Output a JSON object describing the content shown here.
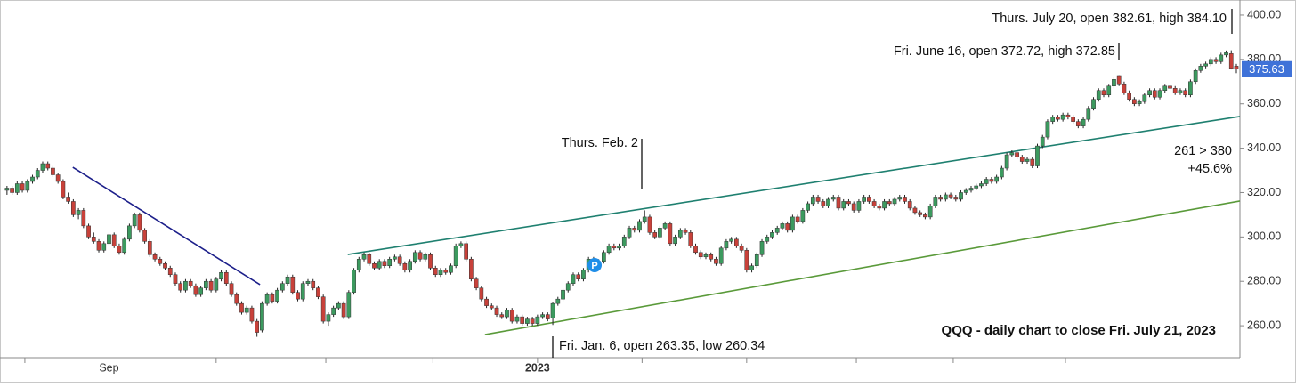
{
  "chart_data": {
    "type": "candlestick",
    "title": "QQQ - daily chart to close Fri. July 21, 2023",
    "annotations": [
      "Thurs. July 20, open 382.61, high 384.10",
      "Fri. June 16, open 372.72, high 372.85",
      "Thurs. Feb. 2",
      "Fri. Jan. 6, open 263.35, low 260.34",
      "261 > 380",
      "+45.6%"
    ],
    "marker_label": "P",
    "up_color": "#3c9a5f",
    "down_color": "#c8413a",
    "wick_color": "#222222",
    "last_price": 375.63,
    "last_price_color": "#3f72d8",
    "ylim": [
      245.6,
      406.8
    ],
    "yticks": [
      {
        "value": 260,
        "label": "260.00"
      },
      {
        "value": 280,
        "label": "280.00"
      },
      {
        "value": 300,
        "label": "300.00"
      },
      {
        "value": 320,
        "label": "320.00"
      },
      {
        "value": 340,
        "label": "340.00"
      },
      {
        "value": 360,
        "label": "360.00"
      },
      {
        "value": 380,
        "label": "380.00"
      },
      {
        "value": 400,
        "label": "400.00"
      }
    ],
    "xlim": [
      -0.5,
      241.7
    ],
    "xticks": [
      {
        "value": 20,
        "label": "Sep"
      },
      {
        "value": 104,
        "label": "2023"
      }
    ],
    "minor_xticks": [
      3.5,
      41,
      62.5,
      83.5,
      104,
      124.5,
      145,
      166.5,
      185.5,
      207.5,
      228
    ],
    "trendlines": [
      {
        "color": "#1c1f8a",
        "x": [
          12.9,
          49.6
        ],
        "y": [
          331.4,
          278.5
        ]
      },
      {
        "color": "#1f8070",
        "x": [
          66.8,
          241.7
        ],
        "y": [
          292.1,
          354.3
        ]
      },
      {
        "color": "#5a9a3a",
        "x": [
          93.7,
          241.7
        ],
        "y": [
          256.0,
          316.2
        ]
      }
    ],
    "ohlc": [
      [
        321,
        323,
        319,
        322
      ],
      [
        322,
        323,
        319,
        320
      ],
      [
        320,
        325,
        319,
        324
      ],
      [
        324,
        325,
        320,
        321
      ],
      [
        321,
        326,
        320,
        325
      ],
      [
        325,
        328,
        324,
        327
      ],
      [
        327,
        331,
        326,
        330
      ],
      [
        330,
        334,
        329,
        333
      ],
      [
        333,
        334,
        330,
        331
      ],
      [
        331,
        332,
        327,
        328
      ],
      [
        328,
        329,
        324,
        325
      ],
      [
        325,
        326,
        317,
        318
      ],
      [
        318,
        320,
        315,
        316
      ],
      [
        316,
        317,
        309,
        310
      ],
      [
        310,
        313,
        308,
        312
      ],
      [
        312,
        313,
        304,
        305
      ],
      [
        305,
        306,
        299,
        300
      ],
      [
        300,
        302,
        297,
        298
      ],
      [
        298,
        299,
        293,
        294
      ],
      [
        294,
        298,
        293,
        297
      ],
      [
        297,
        302,
        296,
        301
      ],
      [
        301,
        302,
        295,
        296
      ],
      [
        296,
        297,
        292,
        293
      ],
      [
        293,
        300,
        292,
        299
      ],
      [
        299,
        306,
        298,
        305
      ],
      [
        305,
        311,
        304,
        310
      ],
      [
        310,
        311,
        302,
        303
      ],
      [
        303,
        304,
        297,
        298
      ],
      [
        298,
        299,
        291,
        292
      ],
      [
        292,
        293,
        289,
        290
      ],
      [
        290,
        291,
        287,
        288
      ],
      [
        288,
        289,
        285,
        286
      ],
      [
        286,
        287,
        282,
        283
      ],
      [
        283,
        284,
        278,
        279
      ],
      [
        279,
        280,
        275,
        276
      ],
      [
        276,
        281,
        275,
        280
      ],
      [
        280,
        281,
        277,
        278
      ],
      [
        278,
        279,
        273,
        274
      ],
      [
        274,
        278,
        273,
        277
      ],
      [
        277,
        281,
        276,
        280
      ],
      [
        280,
        281,
        275,
        276
      ],
      [
        276,
        282,
        275,
        281
      ],
      [
        281,
        285,
        280,
        284
      ],
      [
        284,
        285,
        278,
        279
      ],
      [
        279,
        280,
        273,
        274
      ],
      [
        274,
        275,
        269,
        270
      ],
      [
        270,
        271,
        265,
        266
      ],
      [
        266,
        269,
        265,
        268
      ],
      [
        268,
        269,
        261,
        262
      ],
      [
        262,
        263,
        255,
        257
      ],
      [
        258,
        271,
        257,
        270
      ],
      [
        270,
        275,
        269,
        274
      ],
      [
        274,
        275,
        270,
        271
      ],
      [
        271,
        277,
        270,
        276
      ],
      [
        276,
        280,
        275,
        279
      ],
      [
        279,
        283,
        278,
        282
      ],
      [
        282,
        283,
        274,
        275
      ],
      [
        275,
        276,
        271,
        272
      ],
      [
        272,
        280,
        271,
        279
      ],
      [
        279,
        281,
        278,
        280
      ],
      [
        280,
        281,
        276,
        277
      ],
      [
        277,
        278,
        272,
        273
      ],
      [
        273,
        274,
        261,
        262
      ],
      [
        262,
        266,
        260,
        265
      ],
      [
        265,
        269,
        264,
        268
      ],
      [
        268,
        271,
        267,
        270
      ],
      [
        270,
        271,
        263,
        264
      ],
      [
        264,
        276,
        263,
        275
      ],
      [
        275,
        286,
        274,
        285
      ],
      [
        285,
        291,
        284,
        290
      ],
      [
        290,
        293,
        289,
        292
      ],
      [
        292,
        293,
        287,
        288
      ],
      [
        288,
        289,
        285,
        286
      ],
      [
        286,
        290,
        285,
        289
      ],
      [
        289,
        290,
        286,
        287
      ],
      [
        287,
        291,
        286,
        290
      ],
      [
        290,
        292,
        289,
        291
      ],
      [
        291,
        292,
        287,
        288
      ],
      [
        288,
        289,
        284,
        285
      ],
      [
        285,
        290,
        284,
        289
      ],
      [
        289,
        294,
        288,
        293
      ],
      [
        293,
        294,
        289,
        290
      ],
      [
        290,
        293,
        289,
        292
      ],
      [
        292,
        293,
        285,
        286
      ],
      [
        286,
        287,
        282,
        283
      ],
      [
        283,
        286,
        282,
        285
      ],
      [
        285,
        286,
        283,
        284
      ],
      [
        284,
        288,
        283,
        287
      ],
      [
        287,
        297,
        286,
        296
      ],
      [
        296,
        298,
        295,
        297
      ],
      [
        297,
        298,
        289,
        290
      ],
      [
        290,
        291,
        280,
        281
      ],
      [
        281,
        282,
        276,
        277
      ],
      [
        277,
        278,
        271,
        272
      ],
      [
        272,
        273,
        268,
        269
      ],
      [
        269,
        270,
        267,
        268
      ],
      [
        268,
        269,
        264,
        265
      ],
      [
        265,
        266,
        263,
        264
      ],
      [
        264,
        268,
        263,
        267
      ],
      [
        267,
        268,
        261,
        262
      ],
      [
        262,
        265,
        261,
        264
      ],
      [
        264,
        265,
        260,
        261
      ],
      [
        261,
        264,
        260,
        263
      ],
      [
        263,
        264,
        260,
        261
      ],
      [
        261,
        265,
        260,
        264
      ],
      [
        264,
        266,
        263,
        265
      ],
      [
        265,
        266,
        262,
        263
      ],
      [
        263.35,
        270.5,
        260.34,
        270
      ],
      [
        270,
        273,
        269,
        272
      ],
      [
        272,
        277,
        271,
        276
      ],
      [
        276,
        280,
        275,
        279
      ],
      [
        279,
        284,
        278,
        283
      ],
      [
        283,
        284,
        280,
        281
      ],
      [
        281,
        286,
        280,
        285
      ],
      [
        285,
        291,
        284,
        290
      ],
      [
        290,
        291,
        285,
        286
      ],
      [
        286,
        290,
        285,
        289
      ],
      [
        289,
        294,
        288,
        293
      ],
      [
        293,
        297,
        292,
        296
      ],
      [
        296,
        297,
        294,
        295
      ],
      [
        295,
        297,
        294,
        296
      ],
      [
        296,
        301,
        295,
        300
      ],
      [
        300,
        305,
        299,
        304
      ],
      [
        304,
        305,
        302,
        303
      ],
      [
        303,
        308,
        302,
        307
      ],
      [
        307,
        312,
        306,
        309
      ],
      [
        309,
        310,
        301,
        302
      ],
      [
        302,
        303,
        299,
        300
      ],
      [
        300,
        305,
        299,
        304
      ],
      [
        304,
        307,
        303,
        306
      ],
      [
        306,
        307,
        296,
        297
      ],
      [
        297,
        301,
        296,
        300
      ],
      [
        300,
        304,
        299,
        303
      ],
      [
        303,
        304,
        301,
        302
      ],
      [
        302,
        303,
        295,
        296
      ],
      [
        296,
        297,
        292,
        293
      ],
      [
        293,
        294,
        290,
        291
      ],
      [
        291,
        293,
        290,
        292
      ],
      [
        292,
        293,
        289,
        290
      ],
      [
        290,
        291,
        287,
        288
      ],
      [
        288,
        296,
        287,
        295
      ],
      [
        295,
        299,
        294,
        298
      ],
      [
        298,
        300,
        297,
        299
      ],
      [
        299,
        300,
        295,
        296
      ],
      [
        296,
        297,
        293,
        294
      ],
      [
        294,
        295,
        284,
        285
      ],
      [
        285,
        288,
        284,
        287
      ],
      [
        287,
        293,
        286,
        292
      ],
      [
        292,
        299,
        291,
        298
      ],
      [
        298,
        301,
        297,
        300
      ],
      [
        300,
        303,
        299,
        302
      ],
      [
        302,
        305,
        301,
        304
      ],
      [
        304,
        307,
        303,
        306
      ],
      [
        306,
        307,
        302,
        303
      ],
      [
        303,
        310,
        302,
        309
      ],
      [
        309,
        310,
        306,
        307
      ],
      [
        307,
        313,
        306,
        312
      ],
      [
        312,
        316,
        311,
        315
      ],
      [
        315,
        319,
        314,
        318
      ],
      [
        318,
        319,
        315,
        316
      ],
      [
        316,
        317,
        313,
        314
      ],
      [
        314,
        318,
        313,
        317
      ],
      [
        317,
        319,
        316,
        318
      ],
      [
        318,
        319,
        312,
        313
      ],
      [
        313,
        317,
        312,
        316
      ],
      [
        316,
        317,
        314,
        315
      ],
      [
        315,
        316,
        311,
        312
      ],
      [
        312,
        317,
        311,
        316
      ],
      [
        316,
        319,
        315,
        318
      ],
      [
        318,
        319,
        315,
        316
      ],
      [
        316,
        317,
        313,
        314
      ],
      [
        314,
        315,
        312,
        313
      ],
      [
        313,
        317,
        312,
        316
      ],
      [
        316,
        317,
        314,
        315
      ],
      [
        315,
        318,
        314,
        317
      ],
      [
        317,
        319,
        316,
        318
      ],
      [
        318,
        319,
        315,
        316
      ],
      [
        316,
        317,
        312,
        313
      ],
      [
        313,
        314,
        310,
        311
      ],
      [
        311,
        312,
        309,
        310
      ],
      [
        310,
        311,
        308,
        309
      ],
      [
        309,
        315,
        308,
        314
      ],
      [
        314,
        319,
        313,
        318
      ],
      [
        318,
        319,
        316,
        317
      ],
      [
        317,
        320,
        316,
        319
      ],
      [
        319,
        320,
        317,
        318
      ],
      [
        318,
        319,
        316,
        317
      ],
      [
        317,
        321,
        316,
        320
      ],
      [
        320,
        322,
        319,
        321
      ],
      [
        321,
        323,
        320,
        322
      ],
      [
        322,
        324,
        321,
        323
      ],
      [
        323,
        325,
        322,
        324
      ],
      [
        324,
        327,
        323,
        326
      ],
      [
        326,
        327,
        324,
        325
      ],
      [
        325,
        328,
        324,
        327
      ],
      [
        327,
        332,
        326,
        331
      ],
      [
        331,
        338,
        330,
        337
      ],
      [
        337,
        339,
        336,
        338
      ],
      [
        338,
        339,
        335,
        336
      ],
      [
        336,
        337,
        333,
        334
      ],
      [
        334,
        336,
        333,
        335
      ],
      [
        335,
        336,
        331,
        332
      ],
      [
        332,
        342,
        331,
        341
      ],
      [
        341,
        346,
        340,
        345
      ],
      [
        345,
        353,
        344,
        352
      ],
      [
        352,
        355,
        351,
        354
      ],
      [
        354,
        355,
        352,
        353
      ],
      [
        353,
        356,
        352,
        355
      ],
      [
        355,
        356,
        353,
        354
      ],
      [
        354,
        355,
        351,
        352
      ],
      [
        352,
        353,
        349,
        350
      ],
      [
        350,
        354,
        349,
        353
      ],
      [
        353,
        359,
        352,
        358
      ],
      [
        358,
        363,
        357,
        362
      ],
      [
        362,
        367,
        361,
        366
      ],
      [
        366,
        367,
        363,
        364
      ],
      [
        364,
        369,
        363,
        368
      ],
      [
        368,
        372,
        367,
        371
      ],
      [
        372.72,
        372.85,
        368,
        369
      ],
      [
        369,
        370,
        364,
        365
      ],
      [
        365,
        366,
        361,
        362
      ],
      [
        362,
        363,
        359,
        360
      ],
      [
        360,
        362,
        359,
        361
      ],
      [
        361,
        365,
        360,
        364
      ],
      [
        364,
        367,
        363,
        366
      ],
      [
        366,
        367,
        362,
        363
      ],
      [
        363,
        367,
        362,
        366
      ],
      [
        366,
        369,
        365,
        368
      ],
      [
        368,
        369,
        366,
        367
      ],
      [
        367,
        368,
        364,
        365
      ],
      [
        365,
        367,
        364,
        366
      ],
      [
        366,
        367,
        363,
        364
      ],
      [
        364,
        371,
        363,
        370
      ],
      [
        370,
        376,
        369,
        375
      ],
      [
        375,
        378,
        374,
        377
      ],
      [
        377,
        379,
        376,
        378
      ],
      [
        378,
        381,
        377,
        380
      ],
      [
        380,
        381,
        378,
        379
      ],
      [
        379,
        383,
        378,
        382
      ],
      [
        382,
        384,
        381,
        383
      ],
      [
        382.61,
        384.1,
        375.5,
        376
      ],
      [
        377,
        378,
        373.8,
        375.63
      ]
    ]
  }
}
